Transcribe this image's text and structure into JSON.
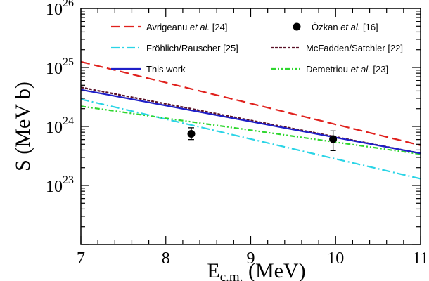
{
  "chart_data": {
    "type": "line",
    "xlabel": "E",
    "xlabel_sub": "c.m.",
    "xlabel_unit": "(MeV)",
    "ylabel": "S (MeV b)",
    "xlim": [
      7,
      11
    ],
    "ylim": [
      1e+22,
      1e+26
    ],
    "yscale": "log",
    "x_ticks": [
      7,
      8,
      9,
      10,
      11
    ],
    "x_tick_labels": [
      "7",
      "8",
      "9",
      "10",
      "11"
    ],
    "y_ticks": [
      1e+23,
      1e+24,
      1e+25,
      1e+26
    ],
    "y_tick_labels": [
      {
        "base": "10",
        "exp": "23"
      },
      {
        "base": "10",
        "exp": "24"
      },
      {
        "base": "10",
        "exp": "25"
      },
      {
        "base": "10",
        "exp": "26"
      }
    ],
    "grid": false,
    "legend_position": "top",
    "series": [
      {
        "name": "Avrigeanu et al. [24]",
        "color": "#e0211d",
        "dash": "long-dash",
        "x": [
          7,
          11
        ],
        "y": [
          1.25e+25,
          4.8e+23
        ]
      },
      {
        "name": "Fröhlich/Rauscher [25]",
        "color": "#2ad4e6",
        "dash": "dash-dot",
        "x": [
          7,
          11
        ],
        "y": [
          2.9e+24,
          1.3e+23
        ]
      },
      {
        "name": "This work",
        "color": "#1f1fc8",
        "dash": "solid",
        "x": [
          7,
          11
        ],
        "y": [
          4.2e+24,
          3.5e+23
        ]
      },
      {
        "name": "McFadden/Satchler [22]",
        "color": "#5a1228",
        "dash": "short-dash",
        "x": [
          7,
          11
        ],
        "y": [
          4.6e+24,
          3.5e+23
        ]
      },
      {
        "name": "Demetriou et al. [23]",
        "color": "#2fd62f",
        "dash": "dash-dot-dot",
        "x": [
          7,
          11
        ],
        "y": [
          2.2e+24,
          3.4e+23
        ]
      }
    ],
    "points": {
      "name": "Özkan et al. [16]",
      "color": "#000000",
      "data": [
        {
          "x": 8.3,
          "y": 7.5e+23,
          "ylo": 6e+23,
          "yhi": 9.5e+23
        },
        {
          "x": 9.97,
          "y": 6.1e+23,
          "ylo": 3.9e+23,
          "yhi": 8.4e+23
        }
      ]
    },
    "legend": [
      {
        "pre": "Avrigeanu ",
        "italic": "et al.",
        "post": " [24]",
        "series": 0
      },
      {
        "pre": "Özkan ",
        "italic": "et al.",
        "post": " [16]",
        "series": "points"
      },
      {
        "pre": "Fröhlich/Rauscher [25]",
        "italic": "",
        "post": "",
        "series": 1
      },
      {
        "pre": "McFadden/Satchler [22]",
        "italic": "",
        "post": "",
        "series": 3
      },
      {
        "pre": "This work",
        "italic": "",
        "post": "",
        "series": 2
      },
      {
        "pre": "Demetriou ",
        "italic": "et al.",
        "post": " [23]",
        "series": 4
      }
    ]
  }
}
